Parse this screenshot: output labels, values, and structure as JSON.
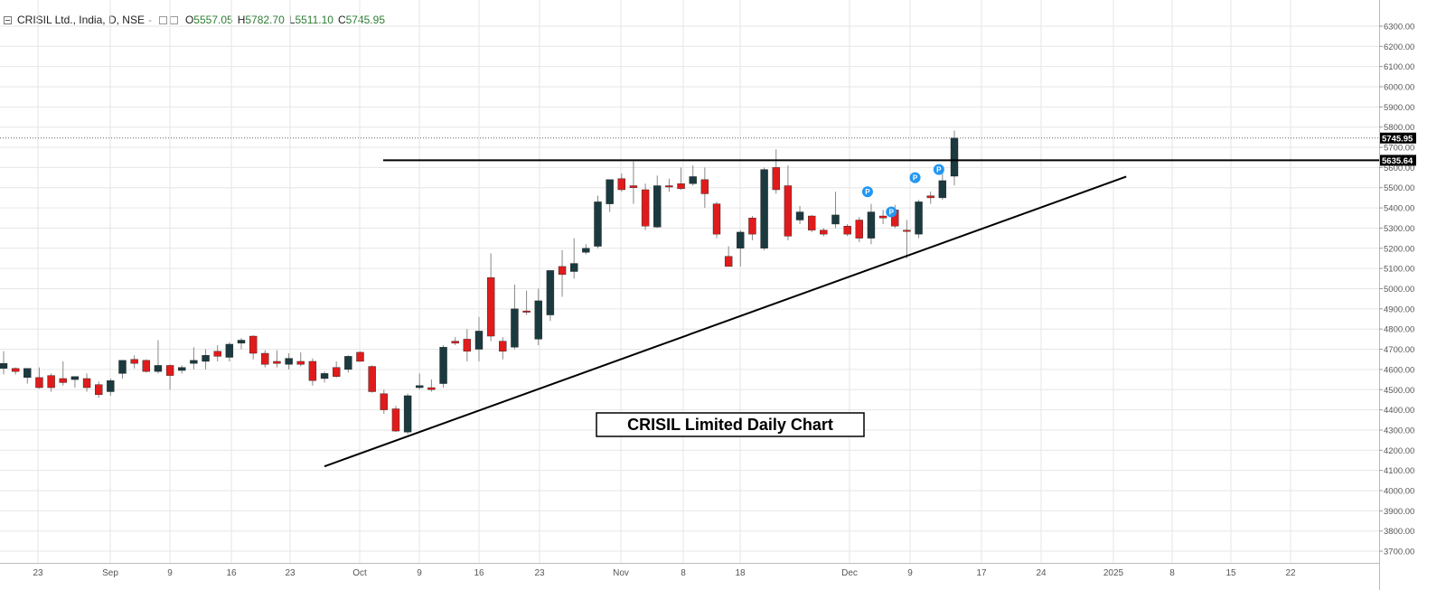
{
  "symbol": {
    "name": "CRISIL Ltd., India, D, NSE",
    "open_label": "O",
    "open": "5557.05",
    "high_label": "H",
    "high": "5782.70",
    "low_label": "L",
    "low": "5511.10",
    "close_label": "C",
    "close": "5745.95"
  },
  "colors": {
    "up": "#1b3a3f",
    "down": "#e01b1b",
    "grid": "#e6e6e6",
    "text": "#555555",
    "badge": "#2196f3"
  },
  "chart_data": {
    "type": "candlestick",
    "annotation": "CRISIL Limited Daily Chart",
    "ylim": [
      3660,
      6340
    ],
    "y_ticks": [
      3700,
      3800,
      3900,
      4000,
      4100,
      4200,
      4300,
      4400,
      4500,
      4600,
      4700,
      4800,
      4900,
      5000,
      5100,
      5200,
      5300,
      5400,
      5500,
      5600,
      5700,
      5800,
      5900,
      6000,
      6100,
      6200,
      6300
    ],
    "x_tick_labels": [
      "23",
      "Sep",
      "9",
      "16",
      "23",
      "Oct",
      "9",
      "16",
      "23",
      "Nov",
      "8",
      "18",
      "Dec",
      "9",
      "17",
      "24",
      "2025",
      "8",
      "15",
      "22"
    ],
    "last_price_label": "5745.95",
    "resistance_label": "5635.64",
    "resistance_level": 5635.64,
    "support_line": {
      "from": [
        0,
        4120
      ],
      "to": [
        68,
        5555
      ]
    },
    "candles": [
      {
        "o": 4605,
        "h": 4690,
        "l": 4575,
        "c": 4630
      },
      {
        "o": 4605,
        "h": 4610,
        "l": 4575,
        "c": 4590
      },
      {
        "o": 4560,
        "h": 4600,
        "l": 4530,
        "c": 4605
      },
      {
        "o": 4560,
        "h": 4610,
        "l": 4505,
        "c": 4510
      },
      {
        "o": 4570,
        "h": 4580,
        "l": 4490,
        "c": 4510
      },
      {
        "o": 4555,
        "h": 4640,
        "l": 4520,
        "c": 4535
      },
      {
        "o": 4550,
        "h": 4560,
        "l": 4510,
        "c": 4565
      },
      {
        "o": 4555,
        "h": 4580,
        "l": 4490,
        "c": 4510
      },
      {
        "o": 4525,
        "h": 4540,
        "l": 4460,
        "c": 4475
      },
      {
        "o": 4490,
        "h": 4555,
        "l": 4470,
        "c": 4545
      },
      {
        "o": 4580,
        "h": 4645,
        "l": 4555,
        "c": 4645
      },
      {
        "o": 4650,
        "h": 4670,
        "l": 4605,
        "c": 4630
      },
      {
        "o": 4645,
        "h": 4650,
        "l": 4585,
        "c": 4590
      },
      {
        "o": 4590,
        "h": 4745,
        "l": 4580,
        "c": 4620
      },
      {
        "o": 4620,
        "h": 4625,
        "l": 4500,
        "c": 4570
      },
      {
        "o": 4595,
        "h": 4620,
        "l": 4580,
        "c": 4610
      },
      {
        "o": 4630,
        "h": 4710,
        "l": 4600,
        "c": 4645
      },
      {
        "o": 4640,
        "h": 4700,
        "l": 4600,
        "c": 4670
      },
      {
        "o": 4690,
        "h": 4720,
        "l": 4640,
        "c": 4665
      },
      {
        "o": 4660,
        "h": 4735,
        "l": 4640,
        "c": 4725
      },
      {
        "o": 4730,
        "h": 4755,
        "l": 4700,
        "c": 4745
      },
      {
        "o": 4765,
        "h": 4770,
        "l": 4650,
        "c": 4680
      },
      {
        "o": 4680,
        "h": 4695,
        "l": 4610,
        "c": 4625
      },
      {
        "o": 4640,
        "h": 4695,
        "l": 4610,
        "c": 4630
      },
      {
        "o": 4625,
        "h": 4680,
        "l": 4600,
        "c": 4655
      },
      {
        "o": 4640,
        "h": 4685,
        "l": 4615,
        "c": 4625
      },
      {
        "o": 4640,
        "h": 4655,
        "l": 4520,
        "c": 4545
      },
      {
        "o": 4555,
        "h": 4590,
        "l": 4535,
        "c": 4580
      },
      {
        "o": 4610,
        "h": 4640,
        "l": 4560,
        "c": 4565
      },
      {
        "o": 4600,
        "h": 4670,
        "l": 4585,
        "c": 4665
      },
      {
        "o": 4685,
        "h": 4690,
        "l": 4645,
        "c": 4640
      },
      {
        "o": 4615,
        "h": 4620,
        "l": 4485,
        "c": 4490
      },
      {
        "o": 4480,
        "h": 4500,
        "l": 4380,
        "c": 4400
      },
      {
        "o": 4405,
        "h": 4420,
        "l": 4290,
        "c": 4295
      },
      {
        "o": 4290,
        "h": 4480,
        "l": 4280,
        "c": 4470
      },
      {
        "o": 4510,
        "h": 4580,
        "l": 4500,
        "c": 4520
      },
      {
        "o": 4510,
        "h": 4550,
        "l": 4490,
        "c": 4500
      },
      {
        "o": 4530,
        "h": 4720,
        "l": 4510,
        "c": 4710
      },
      {
        "o": 4740,
        "h": 4760,
        "l": 4720,
        "c": 4730
      },
      {
        "o": 4750,
        "h": 4800,
        "l": 4640,
        "c": 4690
      },
      {
        "o": 4700,
        "h": 4860,
        "l": 4640,
        "c": 4790
      },
      {
        "o": 5055,
        "h": 5175,
        "l": 4740,
        "c": 4765
      },
      {
        "o": 4740,
        "h": 4760,
        "l": 4650,
        "c": 4690
      },
      {
        "o": 4710,
        "h": 5020,
        "l": 4700,
        "c": 4900
      },
      {
        "o": 4890,
        "h": 4990,
        "l": 4870,
        "c": 4885
      },
      {
        "o": 4750,
        "h": 5000,
        "l": 4720,
        "c": 4940
      },
      {
        "o": 4870,
        "h": 5090,
        "l": 4840,
        "c": 5090
      },
      {
        "o": 5110,
        "h": 5190,
        "l": 4960,
        "c": 5070
      },
      {
        "o": 5085,
        "h": 5250,
        "l": 5050,
        "c": 5125
      },
      {
        "o": 5180,
        "h": 5220,
        "l": 5170,
        "c": 5200
      },
      {
        "o": 5210,
        "h": 5460,
        "l": 5200,
        "c": 5430
      },
      {
        "o": 5420,
        "h": 5540,
        "l": 5380,
        "c": 5540
      },
      {
        "o": 5545,
        "h": 5570,
        "l": 5480,
        "c": 5490
      },
      {
        "o": 5510,
        "h": 5630,
        "l": 5420,
        "c": 5500
      },
      {
        "o": 5490,
        "h": 5520,
        "l": 5290,
        "c": 5310
      },
      {
        "o": 5305,
        "h": 5560,
        "l": 5300,
        "c": 5510
      },
      {
        "o": 5510,
        "h": 5545,
        "l": 5480,
        "c": 5505
      },
      {
        "o": 5520,
        "h": 5600,
        "l": 5490,
        "c": 5495
      },
      {
        "o": 5520,
        "h": 5610,
        "l": 5510,
        "c": 5555
      },
      {
        "o": 5540,
        "h": 5600,
        "l": 5400,
        "c": 5470
      },
      {
        "o": 5420,
        "h": 5430,
        "l": 5250,
        "c": 5270
      },
      {
        "o": 5160,
        "h": 5210,
        "l": 5110,
        "c": 5110
      },
      {
        "o": 5200,
        "h": 5290,
        "l": 5110,
        "c": 5280
      },
      {
        "o": 5350,
        "h": 5360,
        "l": 5240,
        "c": 5270
      },
      {
        "o": 5200,
        "h": 5600,
        "l": 5190,
        "c": 5590
      },
      {
        "o": 5600,
        "h": 5690,
        "l": 5470,
        "c": 5490
      },
      {
        "o": 5510,
        "h": 5610,
        "l": 5240,
        "c": 5260
      },
      {
        "o": 5340,
        "h": 5410,
        "l": 5320,
        "c": 5380
      },
      {
        "o": 5360,
        "h": 5365,
        "l": 5280,
        "c": 5290
      },
      {
        "o": 5290,
        "h": 5300,
        "l": 5260,
        "c": 5270
      },
      {
        "o": 5320,
        "h": 5480,
        "l": 5300,
        "c": 5365
      },
      {
        "o": 5310,
        "h": 5320,
        "l": 5260,
        "c": 5270
      },
      {
        "o": 5340,
        "h": 5355,
        "l": 5230,
        "c": 5250
      },
      {
        "o": 5250,
        "h": 5420,
        "l": 5220,
        "c": 5380
      },
      {
        "o": 5360,
        "h": 5390,
        "l": 5320,
        "c": 5350
      },
      {
        "o": 5390,
        "h": 5415,
        "l": 5300,
        "c": 5310
      },
      {
        "o": 5290,
        "h": 5340,
        "l": 5150,
        "c": 5285
      },
      {
        "o": 5270,
        "h": 5440,
        "l": 5250,
        "c": 5430
      },
      {
        "o": 5460,
        "h": 5480,
        "l": 5420,
        "c": 5450
      },
      {
        "o": 5450,
        "h": 5575,
        "l": 5440,
        "c": 5535
      },
      {
        "o": 5557.05,
        "h": 5782.7,
        "l": 5511.1,
        "c": 5745.95
      }
    ],
    "badges": [
      {
        "i": 73,
        "price": 5480,
        "text": "P"
      },
      {
        "i": 75,
        "price": 5380,
        "text": "P"
      },
      {
        "i": 77,
        "price": 5550,
        "text": "P"
      },
      {
        "i": 79,
        "price": 5590,
        "text": "P"
      }
    ]
  }
}
